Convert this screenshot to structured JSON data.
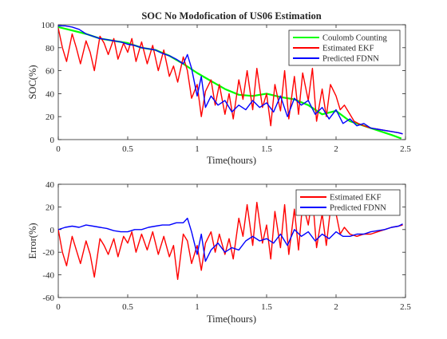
{
  "chart_data": [
    {
      "type": "line",
      "title": "SOC No Modofication of US06 Estimation",
      "xlabel": "Time(hours)",
      "ylabel": "SOC(%)",
      "xlim": [
        0,
        2.5
      ],
      "ylim": [
        0,
        100
      ],
      "xticks": [
        "0",
        "0.5",
        "1",
        "1.5",
        "2",
        "2.5"
      ],
      "yticks": [
        "0",
        "20",
        "40",
        "60",
        "80",
        "100"
      ],
      "legend_position": "top-right",
      "series": [
        {
          "name": "Coulomb Counting",
          "color": "#00ff00",
          "x": [
            0,
            0.1,
            0.2,
            0.3,
            0.4,
            0.5,
            0.6,
            0.7,
            0.8,
            0.9,
            1.0,
            1.1,
            1.2,
            1.3,
            1.4,
            1.5,
            1.6,
            1.7,
            1.8,
            1.9,
            2.0,
            2.1,
            2.2,
            2.3,
            2.4,
            2.47
          ],
          "y": [
            98,
            95,
            92,
            88,
            86,
            84,
            80,
            78,
            73,
            66,
            58,
            51,
            44,
            39,
            38,
            40,
            37,
            35,
            30,
            22,
            25,
            16,
            12,
            8,
            4,
            1
          ]
        },
        {
          "name": "Estimated EKF",
          "color": "#ff0000",
          "x": [
            0,
            0.03,
            0.06,
            0.1,
            0.13,
            0.16,
            0.2,
            0.23,
            0.26,
            0.3,
            0.33,
            0.36,
            0.4,
            0.43,
            0.47,
            0.5,
            0.53,
            0.56,
            0.6,
            0.64,
            0.68,
            0.72,
            0.76,
            0.8,
            0.83,
            0.86,
            0.9,
            0.93,
            0.96,
            1.0,
            1.03,
            1.06,
            1.1,
            1.13,
            1.16,
            1.2,
            1.23,
            1.26,
            1.3,
            1.33,
            1.36,
            1.4,
            1.43,
            1.47,
            1.5,
            1.53,
            1.56,
            1.6,
            1.63,
            1.66,
            1.7,
            1.73,
            1.76,
            1.8,
            1.83,
            1.86,
            1.9,
            1.93,
            1.96,
            2.0,
            2.03,
            2.06,
            2.1,
            2.13,
            2.16,
            2.2,
            2.25,
            2.3,
            2.35,
            2.4,
            2.45,
            2.48
          ],
          "y": [
            97,
            80,
            68,
            92,
            80,
            66,
            86,
            76,
            60,
            90,
            84,
            74,
            88,
            70,
            84,
            76,
            88,
            68,
            85,
            66,
            82,
            60,
            78,
            55,
            64,
            50,
            72,
            60,
            36,
            48,
            20,
            42,
            52,
            30,
            48,
            22,
            40,
            18,
            52,
            35,
            60,
            26,
            62,
            28,
            40,
            12,
            48,
            25,
            60,
            18,
            55,
            22,
            58,
            34,
            62,
            16,
            44,
            20,
            48,
            38,
            26,
            30,
            22,
            16,
            14,
            12,
            10,
            9,
            8,
            7,
            6,
            5
          ]
        },
        {
          "name": "Predicted FDNN",
          "color": "#0000ff",
          "x": [
            0,
            0.05,
            0.1,
            0.15,
            0.2,
            0.25,
            0.3,
            0.35,
            0.4,
            0.45,
            0.5,
            0.55,
            0.6,
            0.65,
            0.7,
            0.75,
            0.8,
            0.85,
            0.9,
            0.93,
            0.96,
            1.0,
            1.03,
            1.06,
            1.1,
            1.15,
            1.2,
            1.25,
            1.3,
            1.35,
            1.4,
            1.45,
            1.5,
            1.55,
            1.6,
            1.65,
            1.7,
            1.75,
            1.8,
            1.85,
            1.9,
            1.95,
            2.0,
            2.05,
            2.1,
            2.15,
            2.2,
            2.25,
            2.3,
            2.35,
            2.4,
            2.45,
            2.48
          ],
          "y": [
            99,
            99,
            98,
            96,
            92,
            90,
            88,
            87,
            86,
            85,
            83,
            82,
            80,
            79,
            78,
            75,
            73,
            70,
            66,
            74,
            62,
            38,
            55,
            28,
            38,
            30,
            34,
            24,
            30,
            26,
            34,
            28,
            32,
            24,
            38,
            20,
            36,
            30,
            34,
            22,
            28,
            18,
            26,
            14,
            18,
            12,
            14,
            10,
            9,
            8,
            7,
            6,
            5
          ]
        }
      ]
    },
    {
      "type": "line",
      "title": "",
      "xlabel": "Time(hours)",
      "ylabel": "Error(%)",
      "xlim": [
        0,
        2.5
      ],
      "ylim": [
        -60,
        40
      ],
      "xticks": [
        "0",
        "0.5",
        "1",
        "1.5",
        "2",
        "2.5"
      ],
      "yticks": [
        "-60",
        "-40",
        "-20",
        "0",
        "20",
        "40"
      ],
      "legend_position": "top-right",
      "series": [
        {
          "name": "Estimated EKF",
          "color": "#ff0000",
          "x": [
            0,
            0.03,
            0.06,
            0.1,
            0.13,
            0.16,
            0.2,
            0.23,
            0.26,
            0.3,
            0.33,
            0.36,
            0.4,
            0.43,
            0.47,
            0.5,
            0.53,
            0.56,
            0.6,
            0.64,
            0.68,
            0.72,
            0.76,
            0.8,
            0.83,
            0.86,
            0.9,
            0.93,
            0.96,
            1.0,
            1.03,
            1.06,
            1.1,
            1.13,
            1.16,
            1.2,
            1.23,
            1.26,
            1.3,
            1.33,
            1.36,
            1.4,
            1.43,
            1.47,
            1.5,
            1.53,
            1.56,
            1.6,
            1.63,
            1.66,
            1.7,
            1.73,
            1.76,
            1.8,
            1.83,
            1.86,
            1.9,
            1.93,
            1.96,
            2.0,
            2.03,
            2.06,
            2.1,
            2.15,
            2.2,
            2.25,
            2.3,
            2.35,
            2.4,
            2.45,
            2.48
          ],
          "y": [
            0,
            -20,
            -32,
            -6,
            -18,
            -30,
            -10,
            -22,
            -42,
            -8,
            -14,
            -22,
            -8,
            -24,
            -6,
            -12,
            -2,
            -20,
            -4,
            -18,
            -2,
            -22,
            -6,
            -24,
            -14,
            -44,
            -4,
            -10,
            -30,
            -14,
            -36,
            -12,
            -2,
            -20,
            -4,
            -22,
            -8,
            -26,
            10,
            -6,
            22,
            -14,
            24,
            -12,
            4,
            -26,
            16,
            -16,
            22,
            -22,
            18,
            -18,
            24,
            4,
            30,
            -16,
            14,
            -14,
            18,
            14,
            -4,
            2,
            -4,
            -6,
            -4,
            -4,
            -2,
            0,
            2,
            3,
            4
          ]
        },
        {
          "name": "Predicted FDNN",
          "color": "#0000ff",
          "x": [
            0,
            0.05,
            0.1,
            0.15,
            0.2,
            0.25,
            0.3,
            0.35,
            0.4,
            0.45,
            0.5,
            0.55,
            0.6,
            0.65,
            0.7,
            0.75,
            0.8,
            0.85,
            0.9,
            0.93,
            0.96,
            1.0,
            1.03,
            1.06,
            1.1,
            1.15,
            1.2,
            1.25,
            1.3,
            1.35,
            1.4,
            1.45,
            1.5,
            1.55,
            1.6,
            1.65,
            1.7,
            1.75,
            1.8,
            1.85,
            1.9,
            1.95,
            2.0,
            2.05,
            2.1,
            2.15,
            2.2,
            2.25,
            2.3,
            2.35,
            2.4,
            2.45,
            2.48
          ],
          "y": [
            0,
            2,
            3,
            2,
            4,
            3,
            2,
            1,
            -1,
            -2,
            -2,
            0,
            0,
            2,
            3,
            4,
            4,
            6,
            6,
            10,
            -2,
            -22,
            -4,
            -28,
            -18,
            -12,
            -20,
            -16,
            -18,
            -10,
            -6,
            -10,
            -8,
            -12,
            -4,
            -14,
            0,
            -6,
            -2,
            -10,
            -4,
            -8,
            -2,
            -6,
            -6,
            -4,
            -4,
            -2,
            -1,
            0,
            2,
            3,
            5
          ]
        }
      ]
    }
  ]
}
